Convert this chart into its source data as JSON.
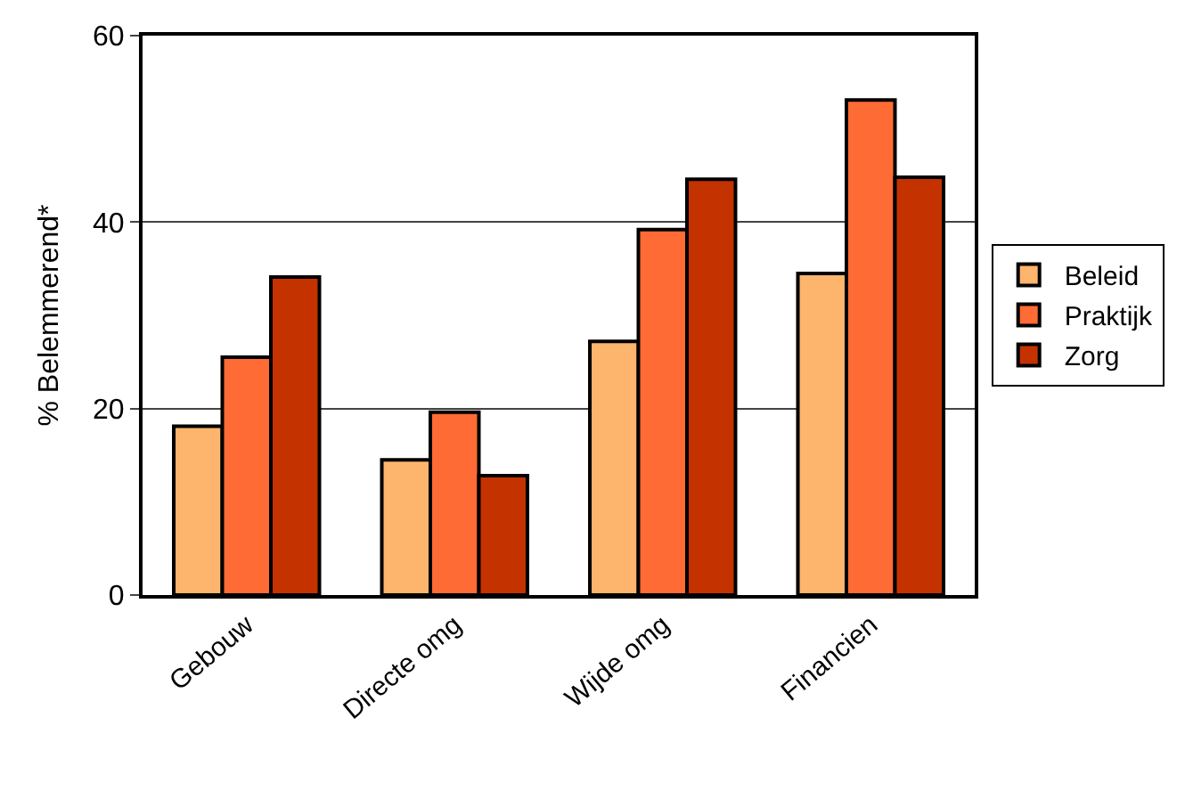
{
  "chart_data": {
    "type": "bar",
    "ylabel": "% Belemmerend*",
    "categories": [
      "Gebouw",
      "Directe omg",
      "Wijde omg",
      "Financien"
    ],
    "series": [
      {
        "name": "Beleid",
        "color": "#fdb46c",
        "values": [
          18.1,
          14.5,
          27.2,
          34.5
        ]
      },
      {
        "name": "Praktijk",
        "color": "#ff6b35",
        "values": [
          25.5,
          19.6,
          39.2,
          53.1
        ]
      },
      {
        "name": "Zorg",
        "color": "#c43200",
        "values": [
          34.1,
          12.8,
          44.6,
          44.8
        ]
      }
    ],
    "ylim": [
      0,
      60
    ],
    "yticks": [
      0,
      20,
      40,
      60
    ],
    "grid": "y",
    "legend": "right"
  }
}
